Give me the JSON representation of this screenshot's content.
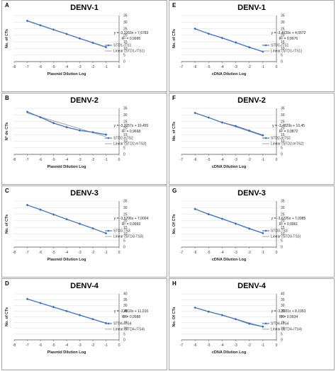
{
  "chart_data": [
    {
      "type": "line",
      "letter": "A",
      "title": "DENV-1",
      "xlabel": "Plasmid Dilution Log",
      "ylabel": "No. of CTs",
      "xlim": [
        -8,
        0
      ],
      "ylim": [
        0,
        35
      ],
      "xticks": [
        -8,
        -7,
        -6,
        -5,
        -4,
        -3,
        -2,
        -1,
        0
      ],
      "yticks": [
        0,
        5,
        10,
        15,
        20,
        25,
        30,
        35
      ],
      "equation": "y = -3,3269x + 7,6783",
      "r2": "R² = 0,9995",
      "series": [
        {
          "name": "STD1-rTS1",
          "x": [
            -7,
            -6,
            -5,
            -4,
            -3,
            -2,
            -1
          ],
          "y": [
            31.0,
            27.6,
            24.3,
            21.0,
            17.6,
            14.3,
            11.0
          ]
        }
      ],
      "trend_label": "Linear (STD1-rTS1)",
      "trend": [
        7.6783,
        -3.3269
      ]
    },
    {
      "type": "line",
      "letter": "E",
      "title": "DENV-1",
      "xlabel": "cDNA Dilution Log",
      "ylabel": "No. of CTs",
      "xlim": [
        -7,
        0
      ],
      "ylim": [
        0,
        35
      ],
      "xticks": [
        -7,
        -6,
        -5,
        -4,
        -3,
        -2,
        -1,
        0
      ],
      "yticks": [
        0,
        5,
        10,
        15,
        20,
        25,
        30,
        35
      ],
      "equation": "y = -3,4639x + 4,0572",
      "r2": "R² = 0,9976",
      "series": [
        {
          "name": "STD1-rTS1",
          "x": [
            -6,
            -5,
            -4,
            -3,
            -2,
            -1
          ],
          "y": [
            25.0,
            21.2,
            18.0,
            14.5,
            10.9,
            7.6
          ]
        }
      ],
      "trend_label": "Linear (STD1-rTS1)",
      "trend": [
        4.0572,
        -3.4639
      ]
    },
    {
      "type": "line",
      "letter": "B",
      "title": "DENV-2",
      "xlabel": "Plasmid Dilution Log",
      "ylabel": "Nº de CTs",
      "xlim": [
        -8,
        0
      ],
      "ylim": [
        0,
        35
      ],
      "xticks": [
        -8,
        -7,
        -6,
        -5,
        -4,
        -3,
        -2,
        -1,
        0
      ],
      "yticks": [
        0,
        5,
        10,
        15,
        20,
        25,
        30,
        35
      ],
      "equation": "y = -3,0057x + 10,455",
      "r2": "R² = 0,9668",
      "series": [
        {
          "name": "STD2-mTS2",
          "x": [
            -7,
            -6,
            -5,
            -4,
            -3,
            -2,
            -1
          ],
          "y": [
            32.3,
            28.2,
            23.8,
            20.6,
            18.2,
            16.8,
            15.0
          ]
        }
      ],
      "trend_label": "Linear (STD2-mTS2)",
      "trend": [
        10.455,
        -3.0057
      ]
    },
    {
      "type": "line",
      "letter": "F",
      "title": "DENV-2",
      "xlabel": "cDNA Dilution Log",
      "ylabel": "No. of CTs",
      "xlim": [
        -7,
        0
      ],
      "ylim": [
        0,
        35
      ],
      "xticks": [
        -7,
        -6,
        -5,
        -4,
        -3,
        -2,
        -1,
        0
      ],
      "yticks": [
        0,
        5,
        10,
        15,
        20,
        25,
        30,
        35
      ],
      "equation": "y = -3,4829x + 10,45",
      "r2": "R² = 0,9872",
      "series": [
        {
          "name": "STD2-mTS2",
          "x": [
            -6,
            -5,
            -4,
            -3,
            -2,
            -1
          ],
          "y": [
            31.5,
            28.0,
            24.2,
            21.5,
            18.0,
            14.5
          ]
        }
      ],
      "trend_label": "Linear (STD2-mTS2)",
      "trend": [
        10.45,
        -3.4829
      ]
    },
    {
      "type": "line",
      "letter": "C",
      "title": "DENV-3",
      "xlabel": "Plasmid Dilution Log",
      "ylabel": "No. of CTs",
      "xlim": [
        -8,
        0
      ],
      "ylim": [
        0,
        35
      ],
      "xticks": [
        -8,
        -7,
        -6,
        -5,
        -4,
        -3,
        -2,
        -1,
        0
      ],
      "yticks": [
        0,
        5,
        10,
        15,
        20,
        25,
        30,
        35
      ],
      "equation": "y = -3,5706x + 7,0004",
      "r2": "R² = 0,9993",
      "series": [
        {
          "name": "STD3-TS3",
          "x": [
            -7,
            -6,
            -5,
            -4,
            -3,
            -2,
            -1
          ],
          "y": [
            32.0,
            28.5,
            24.8,
            21.2,
            17.7,
            14.2,
            10.5
          ]
        }
      ],
      "trend_label": "Linear (STD3-TS3)",
      "trend": [
        7.0004,
        -3.5706
      ]
    },
    {
      "type": "line",
      "letter": "G",
      "title": "DENV-3",
      "xlabel": "cDNA Dilution Log",
      "ylabel": "No. Of CTs",
      "xlim": [
        -7,
        0
      ],
      "ylim": [
        0,
        35
      ],
      "xticks": [
        -7,
        -6,
        -5,
        -4,
        -3,
        -2,
        -1,
        0
      ],
      "yticks": [
        0,
        5,
        10,
        15,
        20,
        25,
        30,
        35
      ],
      "equation": "y = -3,6226x + 7,0985",
      "r2": "R² = 0,9961",
      "series": [
        {
          "name": "STD3-TS3",
          "x": [
            -6,
            -5,
            -4,
            -3,
            -2,
            -1
          ],
          "y": [
            29.0,
            25.0,
            21.5,
            17.8,
            14.0,
            10.6
          ]
        }
      ],
      "trend_label": "Linear (STD3-TS3)",
      "trend": [
        7.0985,
        -3.6226
      ]
    },
    {
      "type": "line",
      "letter": "D",
      "title": "DENV-4",
      "xlabel": "Plasmid Dilution Log",
      "ylabel": "No. of CTs",
      "xlim": [
        -8,
        0
      ],
      "ylim": [
        0,
        40
      ],
      "xticks": [
        -8,
        -7,
        -6,
        -5,
        -4,
        -3,
        -2,
        -1,
        0
      ],
      "yticks": [
        0,
        5,
        10,
        15,
        20,
        25,
        30,
        35,
        40
      ],
      "equation": "y = -3,4816x + 11,016",
      "r2": "R² = 0,9988",
      "series": [
        {
          "name": "STD4-rTS4",
          "x": [
            -7,
            -6,
            -5,
            -4,
            -3,
            -2,
            -1
          ],
          "y": [
            35.5,
            32.0,
            28.5,
            25.0,
            21.5,
            18.0,
            14.5
          ]
        }
      ],
      "trend_label": "Linear (STD4-rTS4)",
      "trend": [
        11.016,
        -3.4816
      ]
    },
    {
      "type": "line",
      "letter": "H",
      "title": "DENV-4",
      "xlabel": "cDNA Dilution Log",
      "ylabel": "No. Of CTs",
      "xlim": [
        -7,
        0
      ],
      "ylim": [
        0,
        40
      ],
      "xticks": [
        -7,
        -6,
        -5,
        -4,
        -3,
        -2,
        -1,
        0
      ],
      "yticks": [
        0,
        5,
        10,
        15,
        20,
        25,
        30,
        35,
        40
      ],
      "equation": "y = -3,3281x + 8,1053",
      "r2": "R² = 0,9934",
      "series": [
        {
          "name": "STD4-rTS4",
          "x": [
            -6,
            -5,
            -4,
            -3,
            -2,
            -1
          ],
          "y": [
            28.0,
            24.5,
            21.5,
            18.0,
            14.0,
            11.5
          ]
        }
      ],
      "trend_label": "Linear (STD4-rTS4)",
      "trend": [
        8.1053,
        -3.3281
      ]
    }
  ],
  "colors": {
    "series": "#4f7ab8",
    "marker": "#3a6bb0",
    "trend": "#9a9a9a",
    "grid": "#d9d9d9",
    "frame": "#8f8f8f",
    "axis": "#555555"
  }
}
